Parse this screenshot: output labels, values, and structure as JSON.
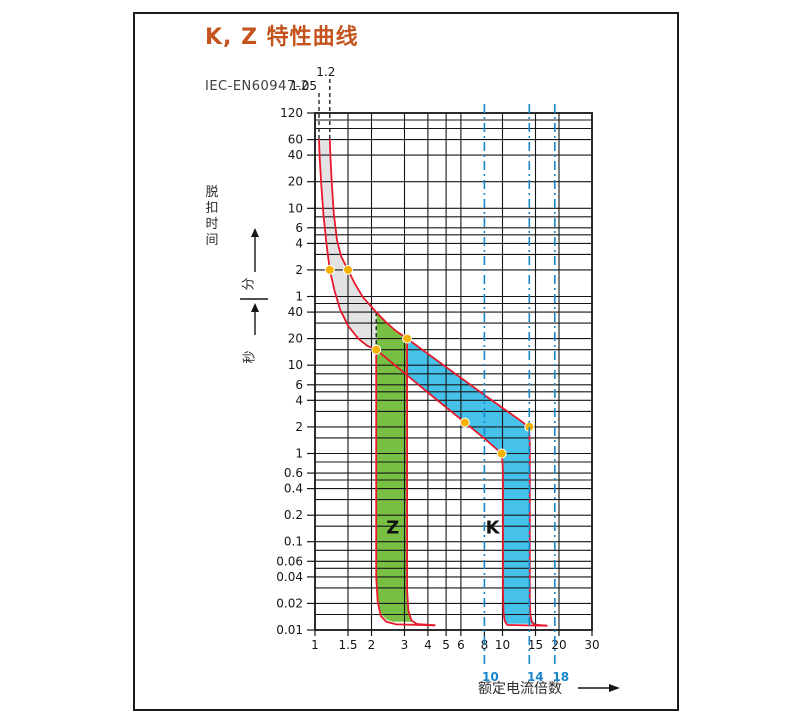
{
  "title": "K, Z 特性曲线",
  "standard": "IEC-EN60947-2",
  "colors": {
    "title_orange": "#c4531d",
    "curve_red": "#e8192c",
    "zone_z_green": "#78c043",
    "zone_k_blue": "#45c1ea",
    "thermal_band_gray": "#e3e3e5",
    "test_point_orange": "#f7b200",
    "reference_blue": "#1886c9",
    "grid_black": "#161616"
  },
  "chart_data": {
    "type": "line",
    "title": "K, Z 特性曲线",
    "subtitle": "IEC-EN60947-2",
    "x_axis": {
      "label": "额定电流倍数",
      "scale": "log",
      "range": [
        1,
        30
      ],
      "tick_labels": [
        "1",
        "1.5",
        "2",
        "3",
        "4",
        "5",
        "6",
        "8",
        "10",
        "15",
        "20",
        "30"
      ],
      "tick_values": [
        1,
        1.5,
        2,
        3,
        4,
        5,
        6,
        8,
        10,
        15,
        20,
        30
      ],
      "gridline_values": [
        1.5,
        2,
        3,
        4,
        5,
        6,
        10,
        15,
        20
      ]
    },
    "y_axis": {
      "label": "脱扣时间",
      "unit_upper": "分",
      "unit_lower": "秒",
      "scale": "log",
      "range_seconds": [
        0.01,
        7200
      ],
      "minute_ticks": [
        {
          "label": "120",
          "seconds": 7200
        },
        {
          "label": "60",
          "seconds": 3600
        },
        {
          "label": "40",
          "seconds": 2400
        },
        {
          "label": "20",
          "seconds": 1200
        },
        {
          "label": "10",
          "seconds": 600
        },
        {
          "label": "6",
          "seconds": 360
        },
        {
          "label": "4",
          "seconds": 240
        },
        {
          "label": "2",
          "seconds": 120
        },
        {
          "label": "1",
          "seconds": 60
        }
      ],
      "second_ticks": [
        {
          "label": "40",
          "seconds": 40
        },
        {
          "label": "20",
          "seconds": 20
        },
        {
          "label": "10",
          "seconds": 10
        },
        {
          "label": "6",
          "seconds": 6
        },
        {
          "label": "4",
          "seconds": 4
        },
        {
          "label": "2",
          "seconds": 2
        },
        {
          "label": "1",
          "seconds": 1
        },
        {
          "label": "0.6",
          "seconds": 0.6
        },
        {
          "label": "0.4",
          "seconds": 0.4
        },
        {
          "label": "0.2",
          "seconds": 0.2
        },
        {
          "label": "0.1",
          "seconds": 0.1
        },
        {
          "label": "0.06",
          "seconds": 0.06
        },
        {
          "label": "0.04",
          "seconds": 0.04
        },
        {
          "label": "0.02",
          "seconds": 0.02
        },
        {
          "label": "0.01",
          "seconds": 0.01
        }
      ],
      "gridline_seconds": [
        0.015,
        0.02,
        0.03,
        0.04,
        0.05,
        0.06,
        0.08,
        0.1,
        0.15,
        0.2,
        0.3,
        0.4,
        0.5,
        0.6,
        0.8,
        1,
        1.5,
        2,
        3,
        4,
        5,
        6,
        8,
        10,
        15,
        20,
        30,
        40,
        50,
        60,
        120,
        180,
        240,
        300,
        360,
        480,
        600,
        1200,
        2400,
        3600,
        4800,
        6000
      ]
    },
    "reference_lines_top": [
      {
        "label": "1.05",
        "x": 1.05
      },
      {
        "label": "1.2",
        "x": 1.2
      }
    ],
    "reference_lines_blue": [
      {
        "label": "10",
        "x": 8
      },
      {
        "label": "14",
        "x": 13.9
      },
      {
        "label": "18",
        "x": 19
      }
    ],
    "zones": [
      {
        "id": "z",
        "label": "Z",
        "trip_range_multiple": "2-3",
        "label_at": [
          2.6,
          0.145
        ]
      },
      {
        "id": "k",
        "label": "K",
        "trip_range_multiple": "10-14",
        "label_at": [
          8.85,
          0.145
        ]
      }
    ],
    "test_points": [
      [
        1.2,
        120
      ],
      [
        1.5,
        120
      ],
      [
        2.12,
        15
      ],
      [
        3.1,
        20
      ],
      [
        6.3,
        2.24
      ],
      [
        9.9,
        1.0
      ],
      [
        13.9,
        2.0
      ]
    ],
    "curves": {
      "left_boundary": [
        [
          1.05,
          3600
        ],
        [
          1.06,
          2200
        ],
        [
          1.08,
          1100
        ],
        [
          1.11,
          500
        ],
        [
          1.15,
          240
        ],
        [
          1.2,
          120
        ],
        [
          1.27,
          70
        ],
        [
          1.36,
          43
        ],
        [
          1.5,
          28
        ],
        [
          1.7,
          20
        ],
        [
          1.9,
          16.6
        ],
        [
          2.12,
          15
        ],
        [
          4,
          4.9
        ],
        [
          6.3,
          2.24
        ],
        [
          8,
          1.48
        ],
        [
          9.9,
          1.0
        ],
        [
          10.02,
          0.72
        ],
        [
          10.06,
          0.5
        ],
        [
          10.06,
          0.026
        ],
        [
          10.12,
          0.0155
        ],
        [
          10.3,
          0.0125
        ],
        [
          10.6,
          0.0114
        ],
        [
          17.2,
          0.0112
        ]
      ],
      "right_boundary": [
        [
          1.2,
          3600
        ],
        [
          1.21,
          2200
        ],
        [
          1.23,
          1100
        ],
        [
          1.26,
          520
        ],
        [
          1.31,
          260
        ],
        [
          1.38,
          170
        ],
        [
          1.5,
          120
        ],
        [
          1.63,
          84
        ],
        [
          1.8,
          59
        ],
        [
          2.12,
          40
        ],
        [
          2.4,
          30.5
        ],
        [
          2.7,
          24.5
        ],
        [
          3.1,
          20
        ],
        [
          8,
          4.6
        ],
        [
          13.0,
          2.21
        ],
        [
          13.6,
          2.0
        ],
        [
          13.88,
          1.7
        ],
        [
          13.97,
          1.3
        ],
        [
          13.98,
          0.024
        ],
        [
          14.06,
          0.015
        ],
        [
          14.3,
          0.0124
        ],
        [
          14.8,
          0.0115
        ],
        [
          17.2,
          0.0112
        ]
      ],
      "z_left_branch": [
        [
          2.12,
          15
        ],
        [
          2.12,
          0.04
        ],
        [
          2.16,
          0.021
        ],
        [
          2.24,
          0.0145
        ],
        [
          2.4,
          0.0124
        ],
        [
          2.7,
          0.0116
        ],
        [
          4.35,
          0.0113
        ]
      ],
      "z_right_branch": [
        [
          3.1,
          20
        ],
        [
          3.1,
          0.028
        ],
        [
          3.15,
          0.0165
        ],
        [
          3.27,
          0.0128
        ],
        [
          3.5,
          0.0117
        ],
        [
          4.35,
          0.0113
        ]
      ],
      "branch_dashed": [
        [
          2.12,
          40
        ],
        [
          2.12,
          15
        ]
      ]
    },
    "regions": {
      "gray_thermal": [
        [
          1.05,
          3600
        ],
        [
          1.06,
          2200
        ],
        [
          1.08,
          1100
        ],
        [
          1.11,
          500
        ],
        [
          1.15,
          240
        ],
        [
          1.2,
          120
        ],
        [
          1.27,
          70
        ],
        [
          1.36,
          43
        ],
        [
          1.5,
          28
        ],
        [
          1.7,
          20
        ],
        [
          1.9,
          16.6
        ],
        [
          2.12,
          15
        ],
        [
          2.12,
          40
        ],
        [
          1.8,
          59
        ],
        [
          1.63,
          84
        ],
        [
          1.5,
          120
        ],
        [
          1.38,
          170
        ],
        [
          1.31,
          260
        ],
        [
          1.26,
          520
        ],
        [
          1.23,
          1100
        ],
        [
          1.21,
          2200
        ],
        [
          1.2,
          3600
        ]
      ],
      "green_z": [
        [
          2.13,
          39
        ],
        [
          2.4,
          30
        ],
        [
          2.7,
          24.5
        ],
        [
          3.08,
          20
        ],
        [
          3.08,
          0.028
        ],
        [
          3.13,
          0.0167
        ],
        [
          3.25,
          0.0128
        ],
        [
          3.3,
          0.0124
        ],
        [
          2.6,
          0.0124
        ],
        [
          2.42,
          0.013
        ],
        [
          2.26,
          0.015
        ],
        [
          2.17,
          0.022
        ],
        [
          2.13,
          0.04
        ]
      ],
      "blue_k": [
        [
          3.12,
          19.6
        ],
        [
          8,
          4.6
        ],
        [
          13.0,
          2.21
        ],
        [
          13.6,
          2.0
        ],
        [
          13.86,
          1.7
        ],
        [
          13.95,
          1.3
        ],
        [
          13.95,
          0.03
        ],
        [
          14.03,
          0.0166
        ],
        [
          14.25,
          0.0131
        ],
        [
          14.9,
          0.012
        ],
        [
          15.35,
          0.0118
        ],
        [
          10.5,
          0.0118
        ],
        [
          10.26,
          0.0131
        ],
        [
          10.13,
          0.0175
        ],
        [
          10.09,
          0.03
        ],
        [
          10.09,
          0.5
        ],
        [
          10.04,
          0.72
        ],
        [
          9.92,
          1.0
        ],
        [
          8,
          1.48
        ],
        [
          6.3,
          2.24
        ],
        [
          4,
          4.9
        ],
        [
          3.12,
          7.5
        ]
      ]
    }
  }
}
